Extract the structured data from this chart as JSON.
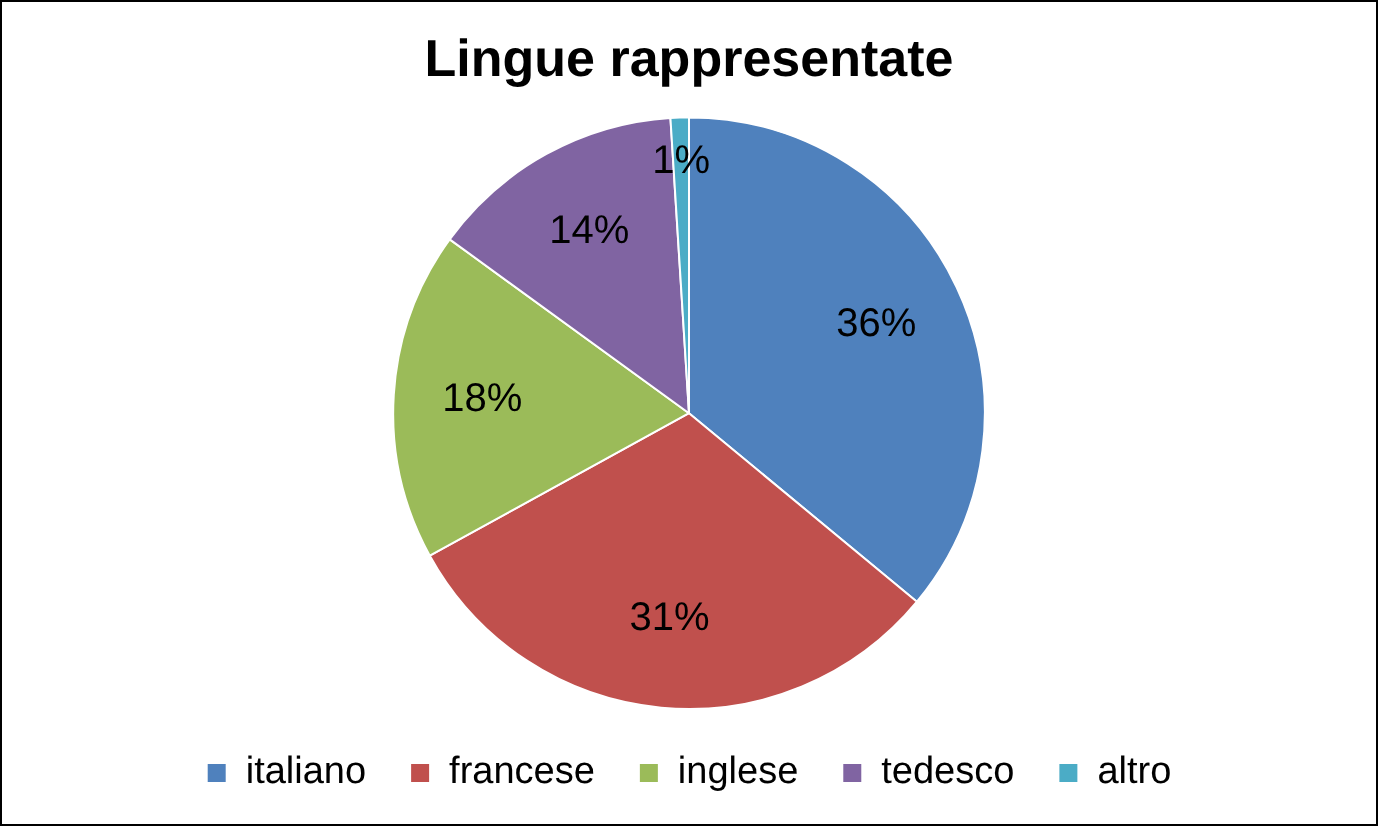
{
  "chart_data": {
    "type": "pie",
    "title": "Lingue rappresentate",
    "categories": [
      "italiano",
      "francese",
      "inglese",
      "tedesco",
      "altro"
    ],
    "values": [
      36,
      31,
      18,
      14,
      1
    ],
    "colors": [
      "#4f81bd",
      "#c0504d",
      "#9bbb59",
      "#8064a2",
      "#4bacc6"
    ],
    "value_labels": [
      "36%",
      "31%",
      "18%",
      "14%",
      "1%"
    ],
    "legend": "bottom"
  }
}
